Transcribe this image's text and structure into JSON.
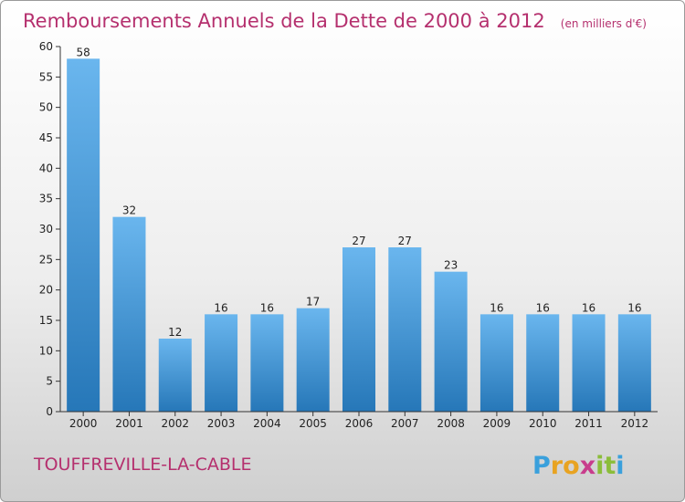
{
  "chart_data": {
    "type": "bar",
    "title": "Remboursements Annuels de la Dette de 2000 à 2012",
    "unit_note": "(en milliers d'€)",
    "categories": [
      "2000",
      "2001",
      "2002",
      "2003",
      "2004",
      "2005",
      "2006",
      "2007",
      "2008",
      "2009",
      "2010",
      "2011",
      "2012"
    ],
    "values": [
      58,
      32,
      12,
      16,
      16,
      17,
      27,
      27,
      23,
      16,
      16,
      16,
      16
    ],
    "ylim": [
      0,
      60
    ],
    "yticks": [
      0,
      5,
      10,
      15,
      20,
      25,
      30,
      35,
      40,
      45,
      50,
      55,
      60
    ],
    "xlabel": "",
    "ylabel": "",
    "grid": false
  },
  "commune": "TOUFFREVILLE-LA-CABLE",
  "logo": {
    "letters": [
      "P",
      "r",
      "o",
      "x",
      "i",
      "t",
      "i"
    ],
    "colors": [
      "#3aa0dc",
      "#e8a321",
      "#e8a321",
      "#c83c8c",
      "#8bbd3a",
      "#8bbd3a",
      "#3aa0dc"
    ]
  },
  "colors": {
    "bar_light": "#6ab6ee",
    "bar_dark": "#2677b8",
    "accent": "#b5306e",
    "axis": "#333333"
  }
}
